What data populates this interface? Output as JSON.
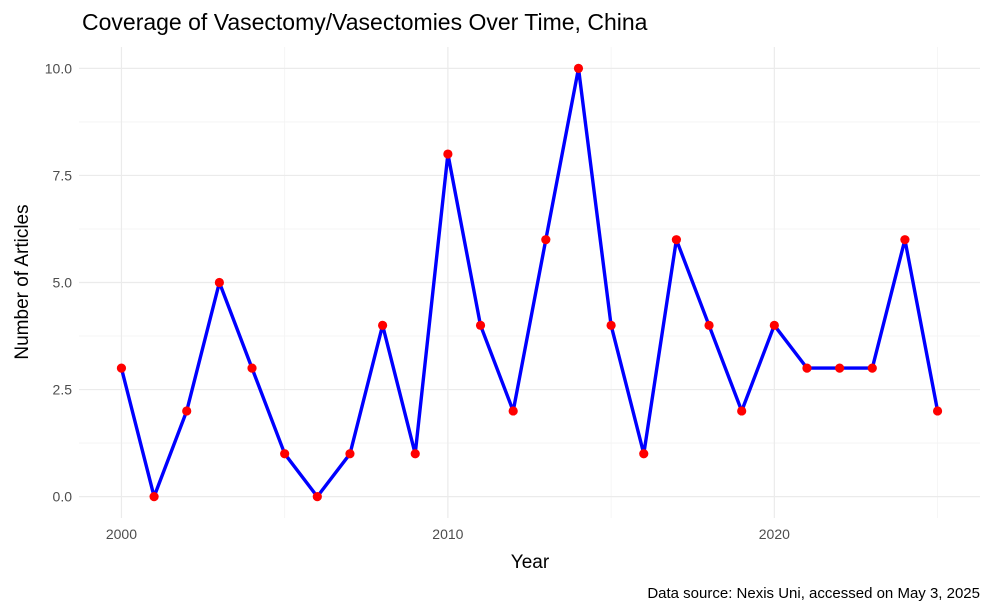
{
  "chart_data": {
    "type": "line",
    "title": "Coverage of Vasectomy/Vasectomies Over Time, China",
    "xlabel": "Year",
    "ylabel": "Number of Articles",
    "caption": "Data source: Nexis Uni, accessed on May 3, 2025",
    "x": [
      2000,
      2001,
      2002,
      2003,
      2004,
      2005,
      2006,
      2007,
      2008,
      2009,
      2010,
      2011,
      2012,
      2013,
      2014,
      2015,
      2016,
      2017,
      2018,
      2019,
      2020,
      2021,
      2022,
      2023,
      2024,
      2025
    ],
    "y": [
      3,
      0,
      2,
      5,
      3,
      1,
      0,
      1,
      4,
      1,
      8,
      4,
      2,
      6,
      10,
      4,
      1,
      6,
      4,
      2,
      4,
      3,
      3,
      3,
      6,
      2
    ],
    "x_ticks": [
      "2000",
      "2010",
      "2020"
    ],
    "y_ticks": [
      "0.0",
      "2.5",
      "5.0",
      "7.5",
      "10.0"
    ],
    "xlim": [
      1998.7,
      2026.3
    ],
    "ylim": [
      -0.5,
      10.5
    ],
    "grid": true,
    "line_color": "#0000ff",
    "point_color": "#ff0000"
  }
}
